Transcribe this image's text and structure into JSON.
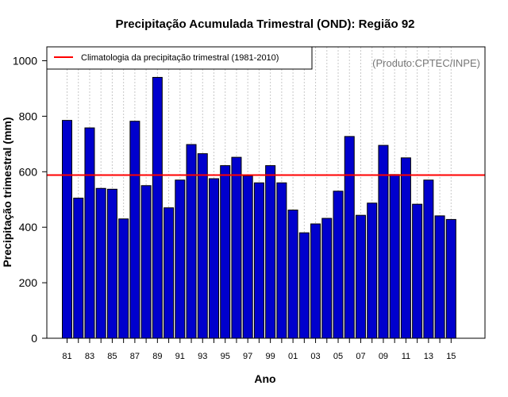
{
  "chart_data": {
    "type": "bar",
    "title": "Precipitação Acumulada Trimestral (OND): Região 92",
    "xlabel": "Ano",
    "ylabel": "Precipitação trimestral (mm)",
    "ylim": [
      0,
      1050
    ],
    "yticks": [
      0,
      200,
      400,
      600,
      800,
      1000
    ],
    "grid": "vertical-dotted",
    "bar_color": "#0000CD",
    "climatology_color": "#FF0000",
    "legend": {
      "label": "Climatologia da precipitação trimestral (1981-2010)",
      "placement": "top-left"
    },
    "credit": "(Produto:CPTEC/INPE)",
    "climatology_value": 588,
    "categories": [
      "1981",
      "1982",
      "1983",
      "1984",
      "1985",
      "1986",
      "1987",
      "1988",
      "1989",
      "1990",
      "1991",
      "1992",
      "1993",
      "1994",
      "1995",
      "1996",
      "1997",
      "1998",
      "1999",
      "2000",
      "2001",
      "2002",
      "2003",
      "2004",
      "2005",
      "2006",
      "2007",
      "2008",
      "2009",
      "2010",
      "2011",
      "2012",
      "2013",
      "2014",
      "2015"
    ],
    "xtick_labels": [
      "81",
      "",
      "83",
      "",
      "85",
      "",
      "87",
      "",
      "89",
      "",
      "91",
      "",
      "93",
      "",
      "95",
      "",
      "97",
      "",
      "99",
      "",
      "01",
      "",
      "03",
      "",
      "05",
      "",
      "07",
      "",
      "09",
      "",
      "11",
      "",
      "13",
      "",
      "15"
    ],
    "values": [
      785,
      505,
      758,
      540,
      537,
      430,
      782,
      550,
      940,
      470,
      570,
      698,
      665,
      575,
      622,
      652,
      585,
      560,
      622,
      560,
      462,
      380,
      412,
      432,
      530,
      727,
      443,
      487,
      695,
      590,
      650,
      483,
      570,
      441,
      428
    ]
  }
}
